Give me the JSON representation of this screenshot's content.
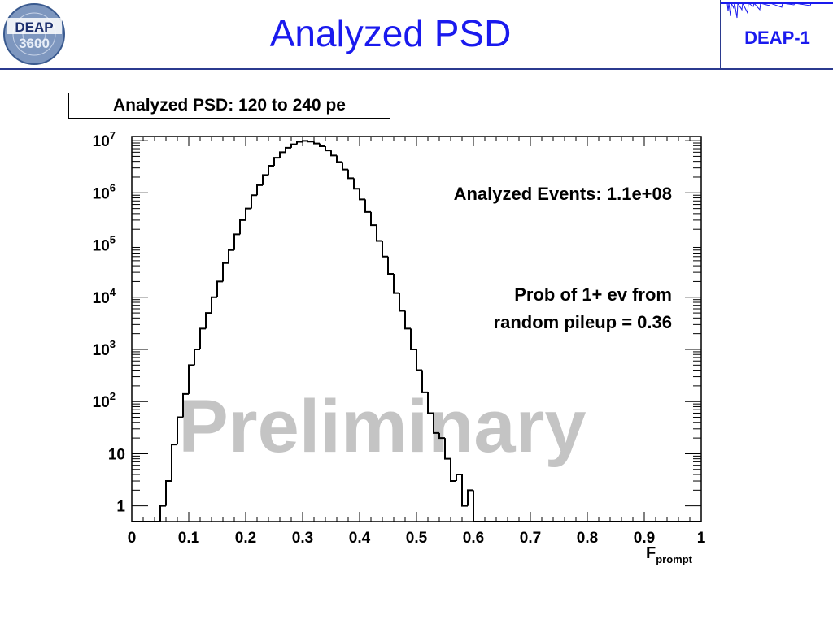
{
  "header": {
    "logo_text_top": "DEAP",
    "logo_text_bottom": "3600",
    "title": "Analyzed PSD",
    "tag": "DEAP-1"
  },
  "chart_data": {
    "type": "bar",
    "title": "Analyzed PSD: 120 to 240 pe",
    "xlabel": "F",
    "xlabel_sub": "prompt",
    "ylabel": "",
    "yscale": "log",
    "xlim": [
      0,
      1
    ],
    "ylim": [
      0.5,
      12000000
    ],
    "grid": false,
    "x_ticks": [
      "0",
      "0.1",
      "0.2",
      "0.3",
      "0.4",
      "0.5",
      "0.6",
      "0.7",
      "0.8",
      "0.9",
      "1"
    ],
    "y_ticks": [
      {
        "base": "10",
        "exp": "7",
        "value": 10000000
      },
      {
        "base": "10",
        "exp": "6",
        "value": 1000000
      },
      {
        "base": "10",
        "exp": "5",
        "value": 100000
      },
      {
        "base": "10",
        "exp": "4",
        "value": 10000
      },
      {
        "base": "10",
        "exp": "3",
        "value": 1000
      },
      {
        "base": "10",
        "exp": "2",
        "value": 100
      },
      {
        "base": "10",
        "exp": "",
        "value": 10
      },
      {
        "base": "1",
        "exp": "",
        "value": 1
      }
    ],
    "bin_width": 0.01,
    "bin_start": 0,
    "values": [
      0,
      0,
      0,
      0,
      0,
      1,
      3,
      15,
      50,
      140,
      500,
      1000,
      2500,
      5000,
      10000,
      20000,
      45000,
      80000,
      160000,
      300000,
      500000,
      900000,
      1400000,
      2200000,
      3300000,
      4700000,
      6000000,
      7300000,
      8500000,
      9500000,
      9900000,
      9600000,
      8800000,
      7800000,
      6500000,
      5200000,
      3900000,
      2800000,
      1900000,
      1200000,
      750000,
      430000,
      240000,
      120000,
      60000,
      28000,
      12000,
      5500,
      2500,
      1000,
      400,
      150,
      60,
      25,
      20,
      8,
      3,
      4,
      1,
      2,
      0.5,
      0,
      0,
      0,
      0,
      0,
      0,
      0,
      0,
      0,
      0,
      0,
      0,
      0,
      0,
      0,
      0,
      0,
      0,
      0,
      0,
      0,
      0,
      0,
      0,
      0,
      0,
      0,
      0,
      0,
      0,
      0,
      0,
      0,
      0,
      0,
      0,
      0,
      0,
      0
    ],
    "annotations": [
      "Analyzed Events: 1.1e+08",
      "Prob of 1+ ev from",
      "random pileup = 0.36"
    ],
    "watermark": "Preliminary",
    "colors": {
      "line": "#000000",
      "watermark": "#c4c4c4",
      "accent": "#1a1aee"
    }
  }
}
